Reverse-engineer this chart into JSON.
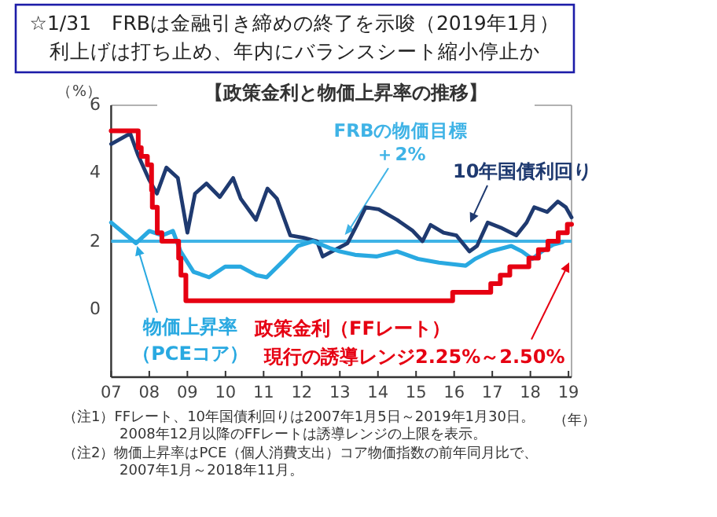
{
  "chart_data": {
    "type": "line",
    "title": "☆1/31　FRBは金融引き締めの終了を示唆（2019年1月）",
    "subtitle": "利上げは打ち止め、年内にバランスシート縮小停止か",
    "xlabel": "（年）",
    "ylabel": "（%）",
    "xlim": [
      2007,
      2019.08
    ],
    "ylim": [
      -2,
      6
    ],
    "xticks": [
      {
        "value": 2007,
        "label": "07"
      },
      {
        "value": 2008,
        "label": "08"
      },
      {
        "value": 2009,
        "label": "09"
      },
      {
        "value": 2010,
        "label": "10"
      },
      {
        "value": 2011,
        "label": "11"
      },
      {
        "value": 2012,
        "label": "12"
      },
      {
        "value": 2013,
        "label": "13"
      },
      {
        "value": 2014,
        "label": "14"
      },
      {
        "value": 2015,
        "label": "15"
      },
      {
        "value": 2016,
        "label": "16"
      },
      {
        "value": 2017,
        "label": "17"
      },
      {
        "value": 2018,
        "label": "18"
      },
      {
        "value": 2019,
        "label": "19"
      }
    ],
    "yticks": [
      0,
      2,
      4,
      6
    ],
    "grid": false,
    "marker": "none",
    "line_style": "solid",
    "ref_lines": [
      {
        "axis": "y",
        "value": 2,
        "label": "FRBの物価目標＋2%",
        "color": "#3fb3e6"
      }
    ],
    "series": [
      {
        "name": "10年国債利回り",
        "color": "#1f3a70",
        "x": [
          2007.0,
          2007.5,
          2007.7,
          2008.0,
          2008.2,
          2008.45,
          2008.75,
          2009.0,
          2009.2,
          2009.5,
          2009.85,
          2010.2,
          2010.4,
          2010.8,
          2011.1,
          2011.35,
          2011.7,
          2012.05,
          2012.4,
          2012.55,
          2012.8,
          2013.2,
          2013.45,
          2013.68,
          2014.02,
          2014.5,
          2014.9,
          2015.17,
          2015.38,
          2015.72,
          2016.06,
          2016.4,
          2016.6,
          2016.88,
          2017.22,
          2017.63,
          2017.9,
          2018.1,
          2018.44,
          2018.72,
          2018.93,
          2019.08
        ],
        "values": [
          4.86,
          5.17,
          4.55,
          3.8,
          3.4,
          4.17,
          3.86,
          2.25,
          3.4,
          3.7,
          3.3,
          3.86,
          3.25,
          2.63,
          3.55,
          3.25,
          2.17,
          2.1,
          2.0,
          1.55,
          1.7,
          1.94,
          2.48,
          3.0,
          2.94,
          2.63,
          2.32,
          2.0,
          2.48,
          2.25,
          2.17,
          1.7,
          1.86,
          2.55,
          2.4,
          2.17,
          2.55,
          3.0,
          2.86,
          3.17,
          3.0,
          2.7
        ]
      },
      {
        "name": "物価上昇率（PCEコア）",
        "color": "#29a9e1",
        "x": [
          2007.0,
          2007.65,
          2008.0,
          2008.34,
          2008.62,
          2008.82,
          2009.16,
          2009.57,
          2009.99,
          2010.4,
          2010.81,
          2011.08,
          2011.5,
          2011.9,
          2012.3,
          2012.73,
          2013.0,
          2013.4,
          2013.96,
          2014.5,
          2015.05,
          2015.6,
          2016.3,
          2016.55,
          2016.95,
          2017.5,
          2017.78,
          2018.05,
          2018.3,
          2018.6,
          2018.84
        ],
        "values": [
          2.55,
          1.94,
          2.3,
          2.17,
          2.3,
          1.7,
          1.1,
          0.94,
          1.25,
          1.25,
          1.0,
          0.94,
          1.4,
          1.86,
          2.0,
          1.8,
          1.7,
          1.6,
          1.55,
          1.7,
          1.48,
          1.37,
          1.28,
          1.48,
          1.7,
          1.86,
          1.7,
          1.48,
          1.7,
          1.9,
          1.97
        ]
      },
      {
        "name": "政策金利（FFレート）",
        "color": "#e60012",
        "type": "step",
        "x": [
          2007.0,
          2007.71,
          2007.79,
          2007.95,
          2008.06,
          2008.08,
          2008.21,
          2008.33,
          2008.77,
          2008.83,
          2008.96,
          2015.96,
          2016.96,
          2017.21,
          2017.46,
          2017.96,
          2018.21,
          2018.46,
          2018.73,
          2018.97,
          2019.08
        ],
        "values": [
          5.25,
          4.75,
          4.5,
          4.25,
          3.5,
          3.0,
          2.25,
          2.0,
          1.5,
          1.0,
          0.25,
          0.5,
          0.75,
          1.0,
          1.25,
          1.5,
          1.75,
          2.0,
          2.25,
          2.5,
          2.5
        ]
      }
    ],
    "annotations": [
      "【政策金利と物価上昇率の推移】",
      "現行の誘導レンジ2.25%～2.50%",
      "（注1）FFレート、10年国債利回りは2007年1月5日～2019年1月30日。2008年12月以降のFFレートは誘導レンジの上限を表示。",
      "（注2）物価上昇率はPCE（個人消費支出）コア物価指数の前年同月比で、2007年1月～2018年11月。"
    ]
  }
}
